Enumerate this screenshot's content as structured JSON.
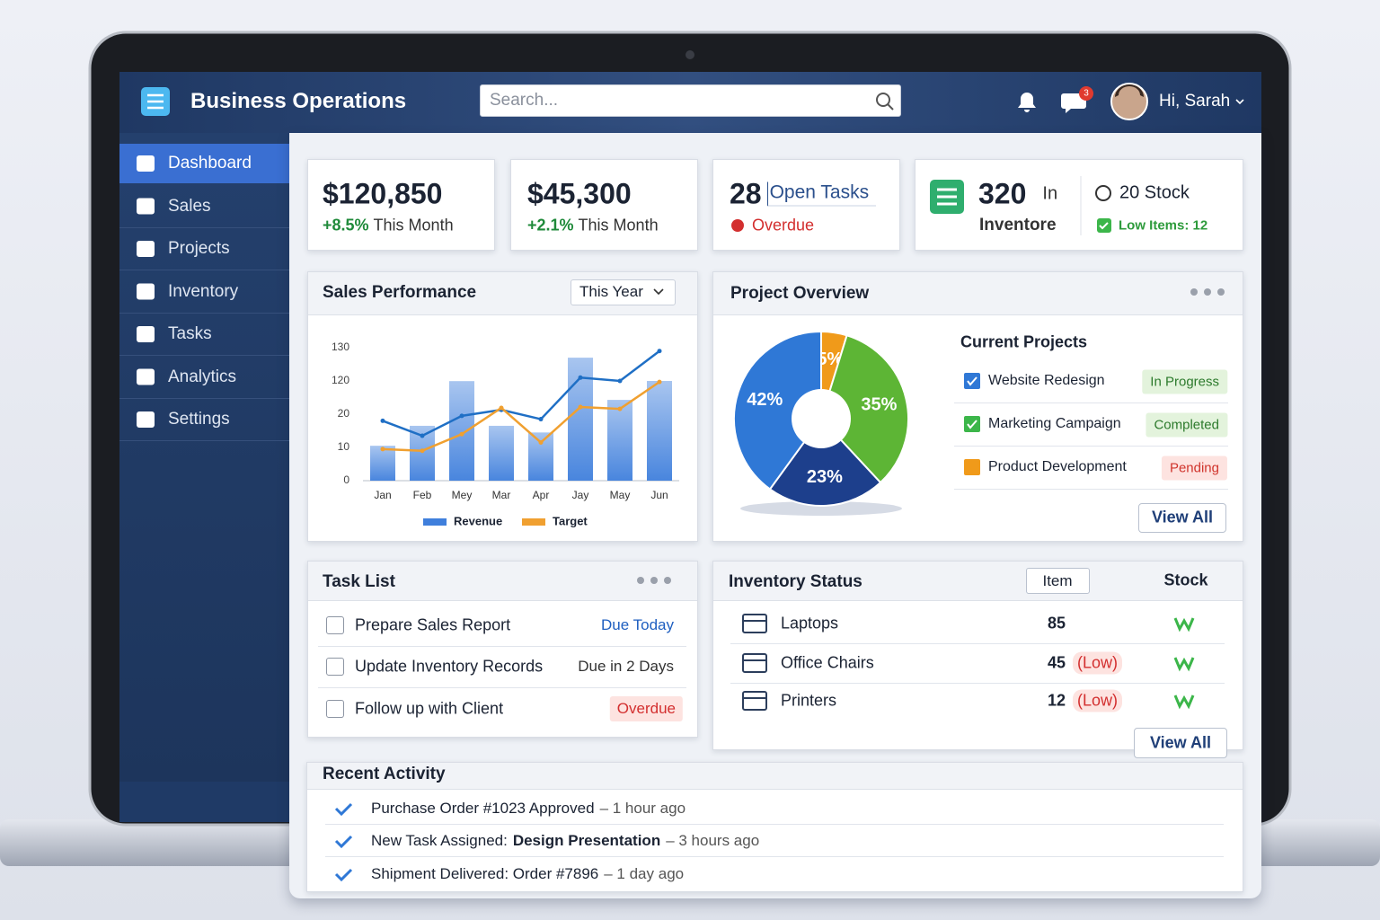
{
  "header": {
    "title": "Business Operations",
    "search_placeholder": "Search...",
    "message_badge": "3",
    "greeting": "Hi, Sarah"
  },
  "sidebar": [
    "Dashboard",
    "Sales",
    "Projects",
    "Inventory",
    "Tasks",
    "Analytics",
    "Settings"
  ],
  "kpis": [
    {
      "value": "$120,850",
      "change": "+8.5%",
      "period": "This Month"
    },
    {
      "value": "$45,300",
      "change": "+2.1%",
      "period": "This Month"
    },
    {
      "value": "28",
      "label": "Open Tasks",
      "status": "Overdue"
    },
    {
      "value": "320",
      "label": "In",
      "sublabel": "Inventore",
      "stock": "20 Stock",
      "low": "Low Items: 12"
    }
  ],
  "sales_panel": {
    "title": "Sales Performance",
    "range": "This Year"
  },
  "project_panel": {
    "title": "Project Overview",
    "list_title": "Current Projects",
    "projects": [
      {
        "name": "Website Redesign",
        "status": "In Progress"
      },
      {
        "name": "Marketing Campaign",
        "status": "Completed"
      },
      {
        "name": "Product Development",
        "status": "Pending"
      }
    ],
    "button": "View All"
  },
  "task_panel": {
    "title": "Task List",
    "tasks": [
      {
        "name": "Prepare Sales Report",
        "due": "Due Today"
      },
      {
        "name": "Update Inventory Records",
        "due": "Due in 2 Days"
      },
      {
        "name": "Follow up with Client",
        "due": "Overdue"
      }
    ]
  },
  "inventory_panel": {
    "title": "Inventory Status",
    "columns": [
      "Item",
      "Stock"
    ],
    "rows": [
      {
        "item": "Laptops",
        "qty": "85"
      },
      {
        "item": "Office Chairs",
        "qty": "45",
        "flag": "(Low)"
      },
      {
        "item": "Printers",
        "qty": "12",
        "flag": "(Low)"
      }
    ],
    "button": "View All"
  },
  "activity": {
    "title": "Recent Activity",
    "items": [
      {
        "text": "Purchase Order #1023 Approved",
        "time": "– 1 hour ago"
      },
      {
        "text": "New Task Assigned:",
        "highlight": "Design Presentation",
        "time": "– 3 hours ago"
      },
      {
        "text": "Shipment Delivered: Order #7896",
        "time": "– 1 day ago"
      }
    ]
  },
  "chart_data": [
    {
      "type": "bar",
      "categories": [
        "Jan",
        "Feb",
        "Mey",
        "Mar",
        "Apr",
        "Jay",
        "May",
        "Jun"
      ],
      "series": [
        {
          "name": "Revenue",
          "type": "bar",
          "color": "#3f7fdc",
          "values": [
            10.5,
            16.5,
            119.5,
            16.5,
            14.5,
            127,
            63,
            120
          ]
        },
        {
          "type": "line",
          "color": "#1f6fc5",
          "values": [
            18,
            13.5,
            19.5,
            33,
            18.5,
            121,
            120,
            129
          ]
        },
        {
          "name": "Target",
          "type": "line",
          "color": "#f0a030",
          "values": [
            9.5,
            9,
            14,
            39,
            11.5,
            41.5,
            36,
            117
          ]
        }
      ],
      "ylim": [
        0,
        130
      ],
      "yticks": [
        0,
        10,
        20,
        120,
        130
      ]
    },
    {
      "type": "pie",
      "values": [
        5,
        35,
        23,
        42
      ],
      "value_labels": [
        "5%",
        "35%",
        "23%",
        "42%"
      ],
      "colors": [
        "#f09a1a",
        "#5db535",
        "#1d3f8c",
        "#2f78d6"
      ]
    }
  ]
}
